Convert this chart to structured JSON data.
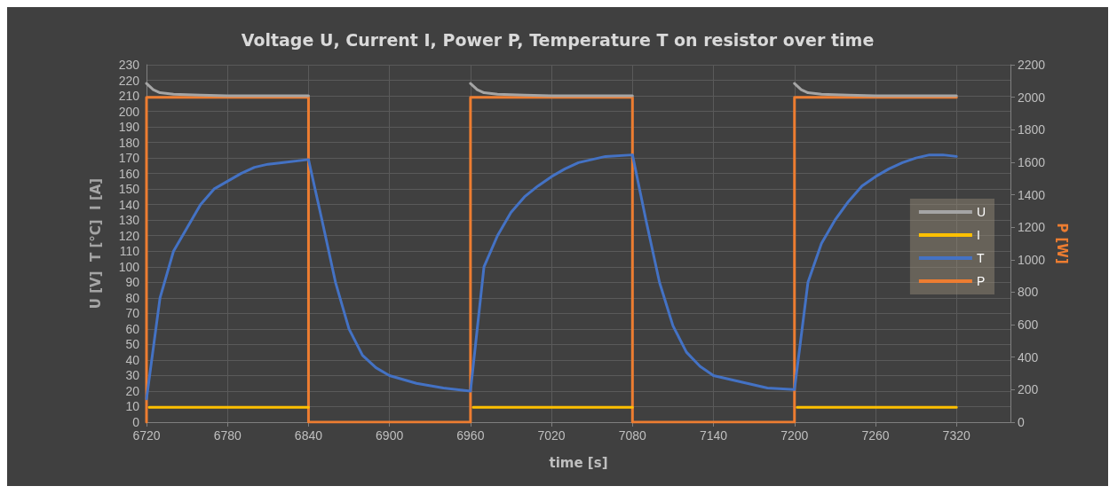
{
  "chart_data": {
    "type": "line",
    "title": "Voltage U, Current I, Power P, Temperature T on resistor over time",
    "xlabel": "time [s]",
    "ylabel": "U [V]  T [°C]  I [A]",
    "y2label": "P [W]",
    "xlim": [
      6720,
      7360
    ],
    "xticks": [
      6720,
      6780,
      6840,
      6900,
      6960,
      7020,
      7080,
      7140,
      7200,
      7260,
      7320
    ],
    "ylim": [
      0,
      230
    ],
    "yticks": [
      0,
      10,
      20,
      30,
      40,
      50,
      60,
      70,
      80,
      90,
      100,
      110,
      120,
      130,
      140,
      150,
      160,
      170,
      180,
      190,
      200,
      210,
      220,
      230
    ],
    "y2lim": [
      0,
      2200
    ],
    "y2ticks": [
      0,
      200,
      400,
      600,
      800,
      1000,
      1200,
      1400,
      1600,
      1800,
      2000,
      2200
    ],
    "grid": true,
    "legend": "right",
    "marker": "none",
    "line_style": "solid",
    "series": [
      {
        "name": "U",
        "color": "#a5a5a5",
        "x": [
          6720,
          6725,
          6730,
          6740,
          6760,
          6780,
          6840,
          6900,
          6960,
          6965,
          6970,
          6980,
          7000,
          7020,
          7080,
          7140,
          7200,
          7205,
          7210,
          7220,
          7240,
          7260,
          7320
        ],
        "values": [
          218,
          214,
          212,
          211,
          210.5,
          210,
          210,
          null,
          218,
          214,
          212,
          211,
          210.5,
          210,
          210,
          null,
          218,
          214,
          212,
          211,
          210.5,
          210,
          210
        ]
      },
      {
        "name": "I",
        "color": "#ffc000",
        "x": [
          6722,
          6780,
          6840,
          6900,
          6962,
          7020,
          7080,
          7140,
          7202,
          7260,
          7320
        ],
        "values": [
          9.5,
          9.5,
          9.5,
          null,
          9.5,
          9.5,
          9.5,
          null,
          9.5,
          9.5,
          9.5
        ]
      },
      {
        "name": "T",
        "color": "#4472c4",
        "x": [
          6720,
          6730,
          6740,
          6750,
          6760,
          6770,
          6780,
          6790,
          6800,
          6810,
          6820,
          6840,
          6850,
          6860,
          6870,
          6880,
          6890,
          6900,
          6920,
          6940,
          6960,
          6970,
          6980,
          6990,
          7000,
          7010,
          7020,
          7030,
          7040,
          7050,
          7060,
          7080,
          7090,
          7100,
          7110,
          7120,
          7130,
          7140,
          7160,
          7180,
          7200,
          7210,
          7220,
          7230,
          7240,
          7250,
          7260,
          7270,
          7280,
          7290,
          7300,
          7310,
          7320
        ],
        "values": [
          15,
          80,
          110,
          125,
          140,
          150,
          155,
          160,
          164,
          166,
          167,
          169,
          130,
          90,
          60,
          43,
          35,
          30,
          25,
          22,
          20,
          100,
          120,
          135,
          145,
          152,
          158,
          163,
          167,
          169,
          171,
          172,
          130,
          90,
          62,
          45,
          36,
          30,
          26,
          22,
          21,
          90,
          115,
          130,
          142,
          152,
          158,
          163,
          167,
          170,
          172,
          172,
          171
        ]
      },
      {
        "name": "P",
        "color": "#ed7d31",
        "axis": "y2",
        "x": [
          6720,
          6720,
          6840,
          6840,
          6960,
          6960,
          7080,
          7080,
          7200,
          7200,
          7320
        ],
        "values": [
          0,
          2000,
          2000,
          0,
          0,
          2000,
          2000,
          0,
          0,
          2000,
          2000
        ]
      }
    ]
  }
}
